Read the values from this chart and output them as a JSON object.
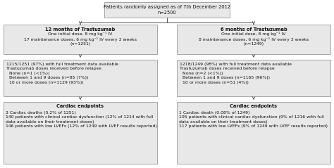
{
  "top_box_line1": "Patients randomly assigned as of 7th December 2012",
  "top_box_line2": "n=2500",
  "left_arm_title": "12 months of Trastuzumab",
  "left_arm_body": "One initial dose, 8 mg kg⁻¹ IV\n17 maintenance doses, 6 mg kg⁻¹ IV every 3 weeks\n(n=1251)",
  "right_arm_title": "6 months of Trastuzumab",
  "right_arm_body": "One initial dose, 8 mg kg⁻¹ IV\n8 maintenance doses, 6 mg kg⁻¹ IV every 3 weeks\n(n=1249)",
  "left_mid_line1": "1215/1251 (97%) with full treatment data available",
  "left_mid_line2": "Trastuzumab doses received before relapse",
  "left_mid_line3": "  None (n=1 (<1%))",
  "left_mid_line4": "  Between 1 and 9 doses (n=85 (7%))",
  "left_mid_line5": "  10 or more doses (n=1129 (93%))",
  "right_mid_line1": "1218/1249 (98%) with full treatment data available",
  "right_mid_line2": "Trastuzumab doses received before relapse",
  "right_mid_line3": "  None (n=2 (<1%))",
  "right_mid_line4": "  Between 1 and 9 doses (n=1165 (96%))",
  "right_mid_line5": "  10 or more doses (n=51 (4%))",
  "left_cardiac_title": "Cardiac endpoints",
  "left_cardiac_line1": "3 Cardiac deaths (0.2% of 1251)",
  "left_cardiac_line2": "140 patients with clinical cardiac dysfunction (12% of 1214 with full",
  "left_cardiac_line3": "data available on their treatment doses)",
  "left_cardiac_line4": "146 patients with low LVEFs (12% of 1249 with LVEF results reported)",
  "right_cardiac_title": "Cardiac endpoints",
  "right_cardiac_line1": "1 Cardiac death (0.08% of 1249)",
  "right_cardiac_line2": "105 patients with clinical cardiac dysfunction (9% of 1216 with full",
  "right_cardiac_line3": "data available on their treatment doses)",
  "right_cardiac_line4": "117 patients with low LVEFs (9% of 1249 with LVEF results reported)",
  "box_bg": "#e8e8e8",
  "box_edge": "#999999",
  "line_color": "#555555",
  "text_color": "#111111",
  "bg_color": "#ffffff"
}
